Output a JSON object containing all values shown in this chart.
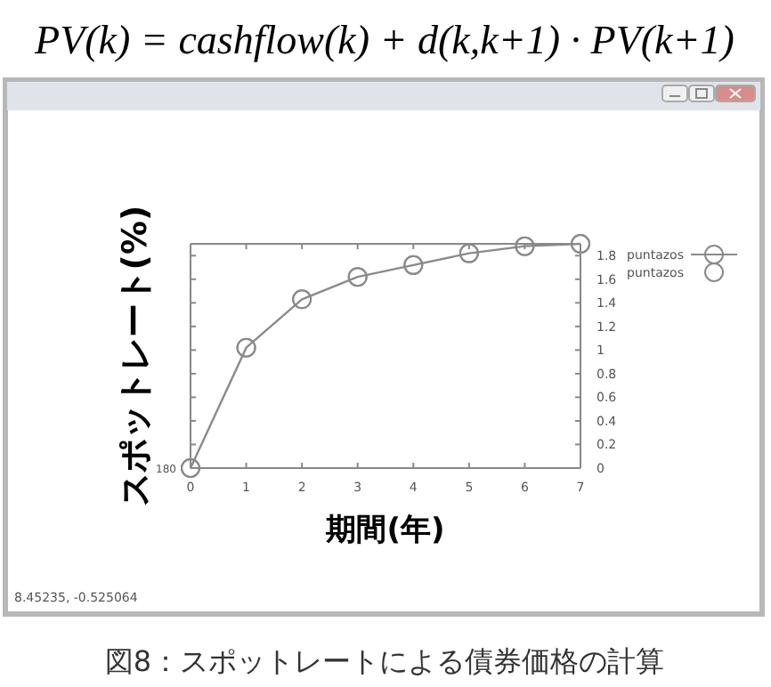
{
  "chart_data": {
    "type": "line",
    "title": "PV(k) = cashflow(k) + d(k,k+1) · PV(k+1)",
    "xlabel": "期間(年)",
    "ylabel": "スポットレート(%)",
    "x": [
      0,
      1,
      2,
      3,
      4,
      5,
      6,
      7
    ],
    "series": [
      {
        "name": "puntazos",
        "color": "#8a8a8a",
        "values": [
          0,
          1.02,
          1.43,
          1.62,
          1.72,
          1.82,
          1.88,
          1.9
        ]
      },
      {
        "name": "puntazos",
        "type": "scatter",
        "color": "#8a8a8a",
        "values": [
          0,
          1.02,
          1.43,
          1.62,
          1.72,
          1.82,
          1.88,
          1.9
        ]
      }
    ],
    "xlim": [
      0,
      7
    ],
    "xticks": [
      0,
      1,
      2,
      3,
      4,
      5,
      6,
      7
    ],
    "ylim": [
      0,
      1.9
    ],
    "yticks": [
      0,
      0.2,
      0.4,
      0.6,
      0.8,
      1,
      1.2,
      1.4,
      1.6,
      1.8
    ],
    "grid": false,
    "marker": "circle",
    "legend": "top right",
    "annotations": [
      {
        "text": "180",
        "x": 0,
        "y": 0
      },
      "8.45235, -0.525064",
      "図8：スポットレートによる債券価格の計算"
    ]
  }
}
